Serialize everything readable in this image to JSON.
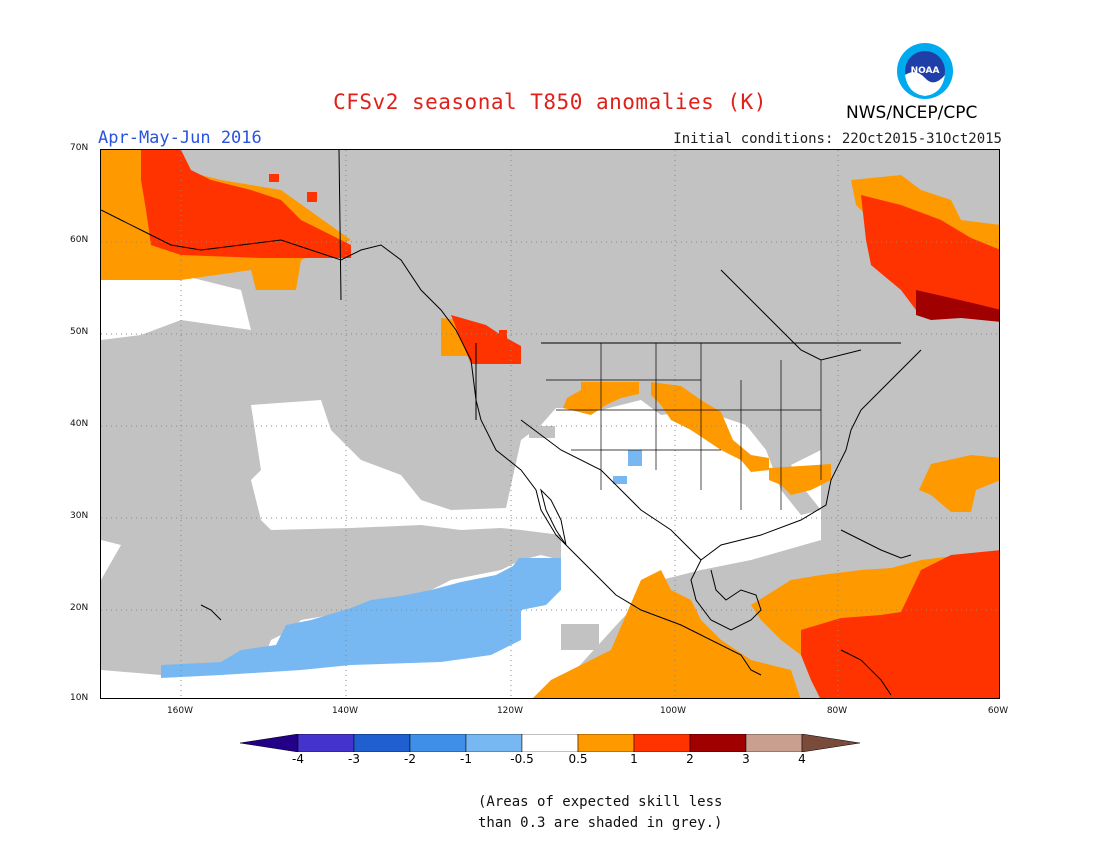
{
  "title": "CFSv2 seasonal T850 anomalies (K)",
  "period": "Apr-May-Jun 2016",
  "initial_conditions": "Initial conditions: 22Oct2015-31Oct2015",
  "agency": "NWS/NCEP/CPC",
  "logo": {
    "icon": "noaa-logo-icon",
    "text": "NOAA"
  },
  "axes": {
    "lat_labels": [
      "70N",
      "60N",
      "50N",
      "40N",
      "30N",
      "20N",
      "10N"
    ],
    "lon_labels": [
      "160W",
      "140W",
      "120W",
      "100W",
      "80W",
      "60W"
    ]
  },
  "colorbar": {
    "labels": [
      "-4",
      "-3",
      "-2",
      "-1",
      "-0.5",
      "0.5",
      "1",
      "2",
      "3",
      "4"
    ],
    "colors": [
      "#220088",
      "#4433cc",
      "#1f5fd0",
      "#3f8fe8",
      "#78b8f2",
      "#ffffff",
      "#ff9900",
      "#ff3300",
      "#a00000",
      "#c9a090",
      "#7a4a3a"
    ]
  },
  "note": [
    "(Areas of expected skill less",
    "than 0.3 are shaded in grey.)"
  ],
  "colors": {
    "grey_low_skill": "#c2c2c2",
    "warm_05_1": "#ff9900",
    "warm_1_2": "#ff3300",
    "warm_2_3": "#a00000",
    "cool_m1_m05": "#78b8f2",
    "neutral": "#ffffff"
  }
}
